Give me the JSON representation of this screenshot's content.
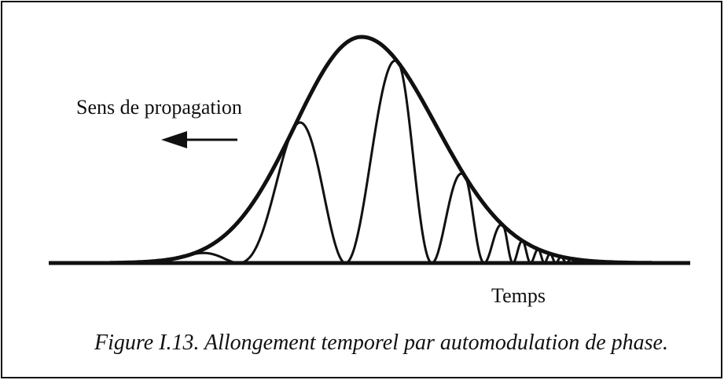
{
  "labels": {
    "direction": "Sens de propagation",
    "axis": "Temps"
  },
  "caption": "Figure I.13. Allongement temporel par automodulation de phase."
}
